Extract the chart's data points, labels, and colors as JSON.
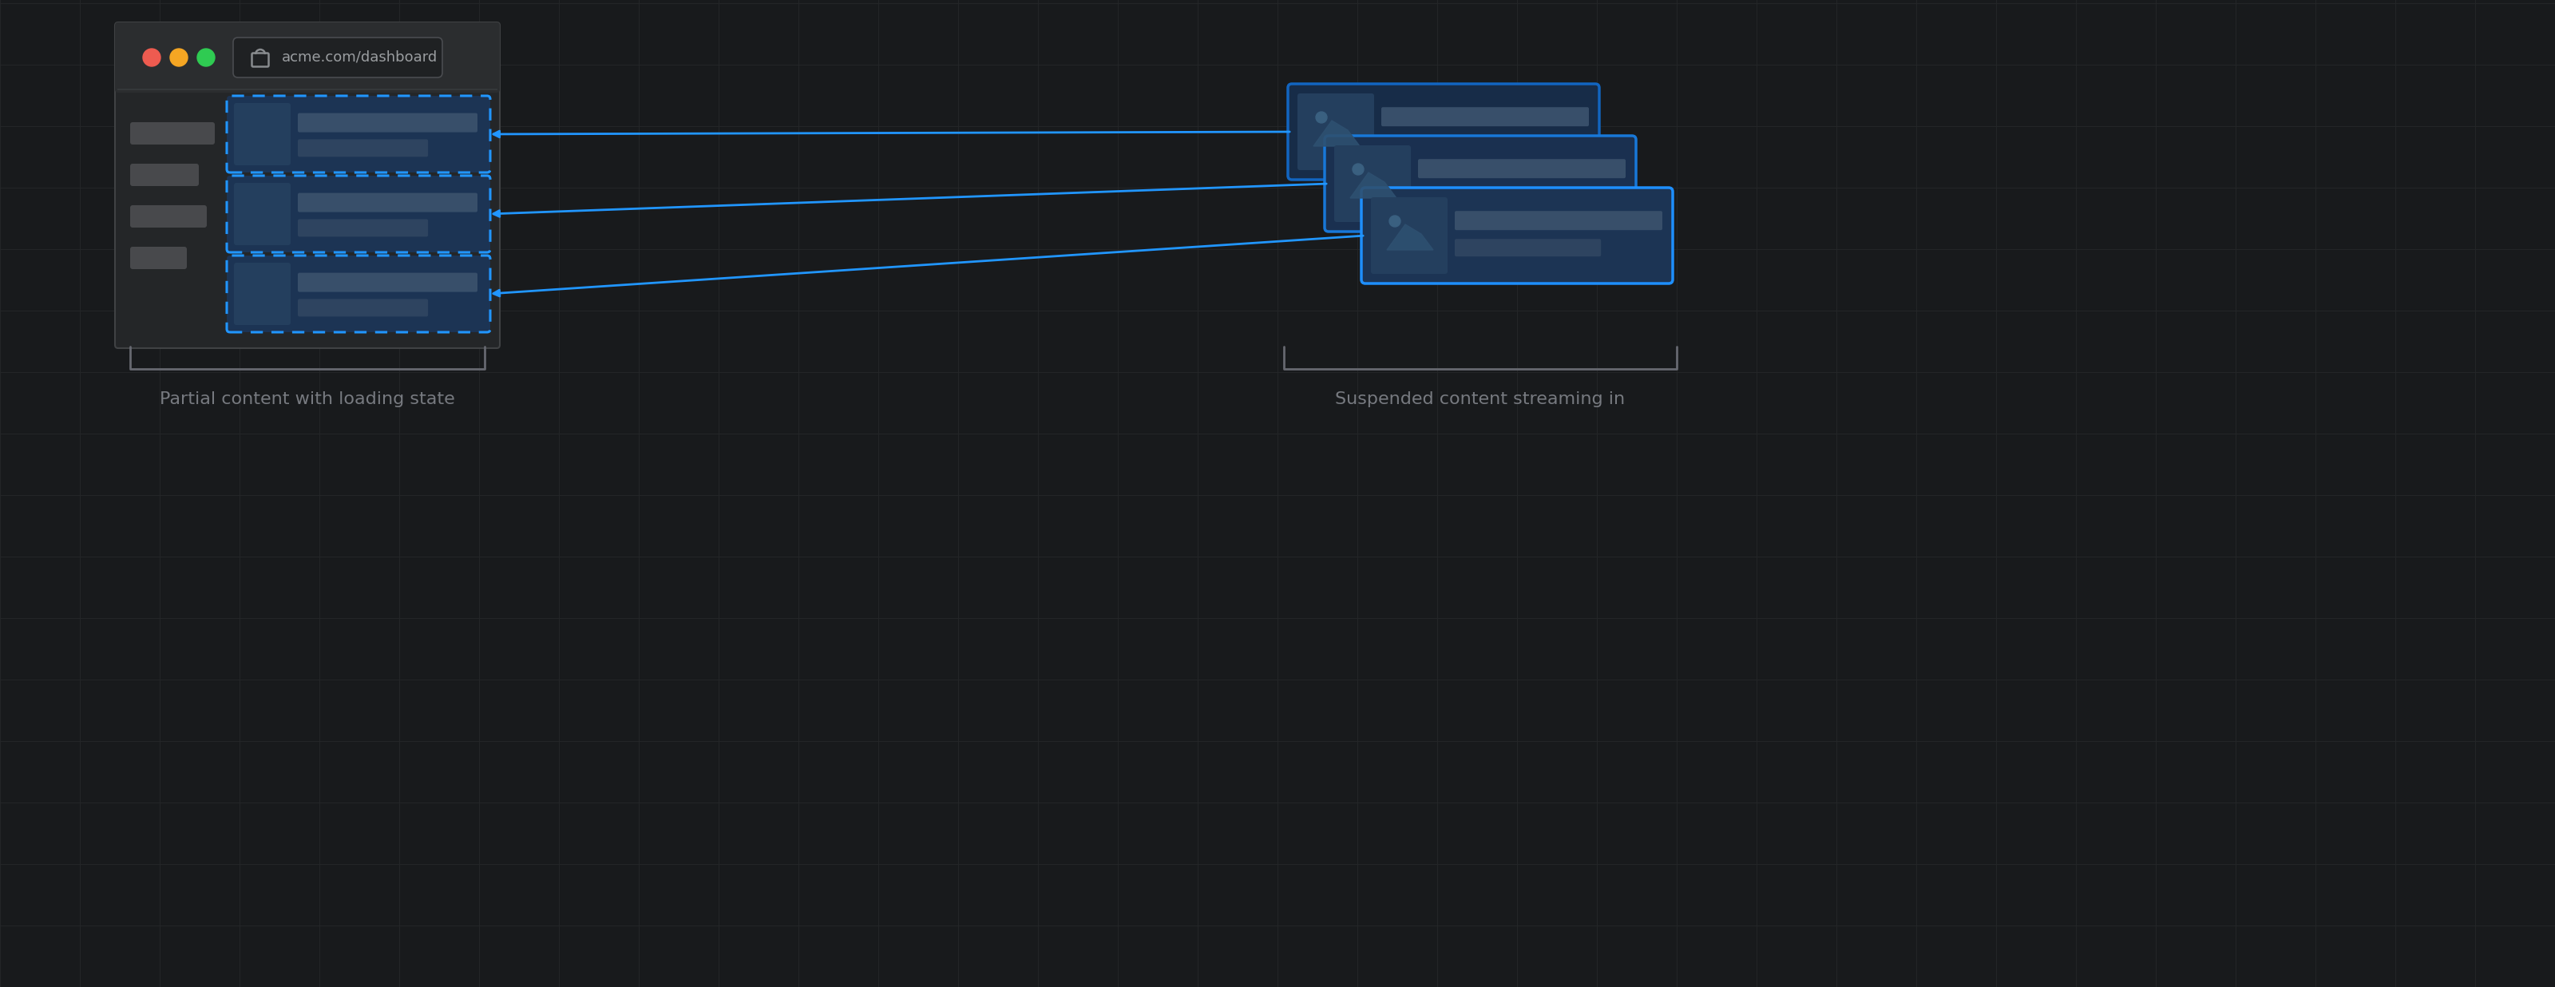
{
  "bg_color": "#181a1c",
  "grid_color": "#252729",
  "fig_width": 32.0,
  "fig_height": 12.36,
  "label_left": "Partial content with loading state",
  "label_right": "Suspended content streaming in",
  "blue_solid": "#1e8fff",
  "blue_dash": "#2196ff",
  "card_bg": "#1c3454",
  "card_bg2": "#1a3050",
  "card_bg3": "#172c48",
  "thumb_bg": "#243f5e",
  "bar_color1": "#384f6a",
  "bar_color2": "#2e4460",
  "browser_bg": "#242628",
  "browser_header_bg": "#2b2d2f",
  "browser_border": "#404244",
  "sidebar_bar_color": "#48494c",
  "url_bar_bg": "#1f2123",
  "url_bar_border": "#4a4c50",
  "url_text_color": "#9a9da0",
  "lock_color": "#888b8e",
  "dot_red": "#ee5b50",
  "dot_yellow": "#f5a623",
  "dot_green": "#2fcb52",
  "bracket_color": "#666870",
  "arrow_color": "#2196ff",
  "text_color": "#777a80",
  "sep_color": "#35383a"
}
